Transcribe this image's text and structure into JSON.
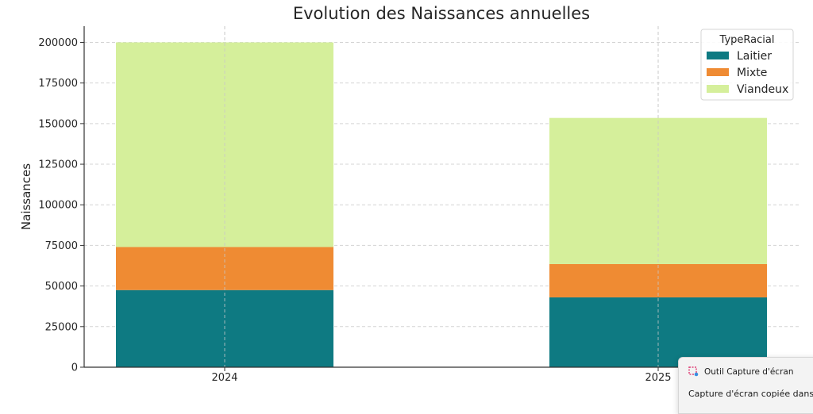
{
  "chart_data": {
    "type": "bar",
    "stacked": true,
    "title": "Evolution des Naissances annuelles",
    "xlabel": "",
    "ylabel": "Naissances",
    "categories": [
      "2024",
      "2025"
    ],
    "series": [
      {
        "name": "Laitier",
        "values": [
          47500,
          43000
        ],
        "color": "#0e7a82"
      },
      {
        "name": "Mixte",
        "values": [
          26500,
          20500
        ],
        "color": "#ef8b33"
      },
      {
        "name": "Viandeux",
        "values": [
          126000,
          90000
        ],
        "color": "#d5ef9b"
      }
    ],
    "ylim": [
      0,
      210000
    ],
    "yticks": [
      0,
      25000,
      50000,
      75000,
      100000,
      125000,
      150000,
      175000,
      200000
    ],
    "ytick_labels": [
      "0",
      "25000",
      "50000",
      "75000",
      "100000",
      "125000",
      "150000",
      "175000",
      "200000"
    ],
    "grid": true,
    "legend": {
      "title": "TypeRacial",
      "placement": "top-right"
    }
  },
  "toast": {
    "app": "Outil Capture d'écran",
    "message": "Capture d'écran copiée dans le Presse-papiers",
    "icon": "snipping-tool-icon"
  }
}
